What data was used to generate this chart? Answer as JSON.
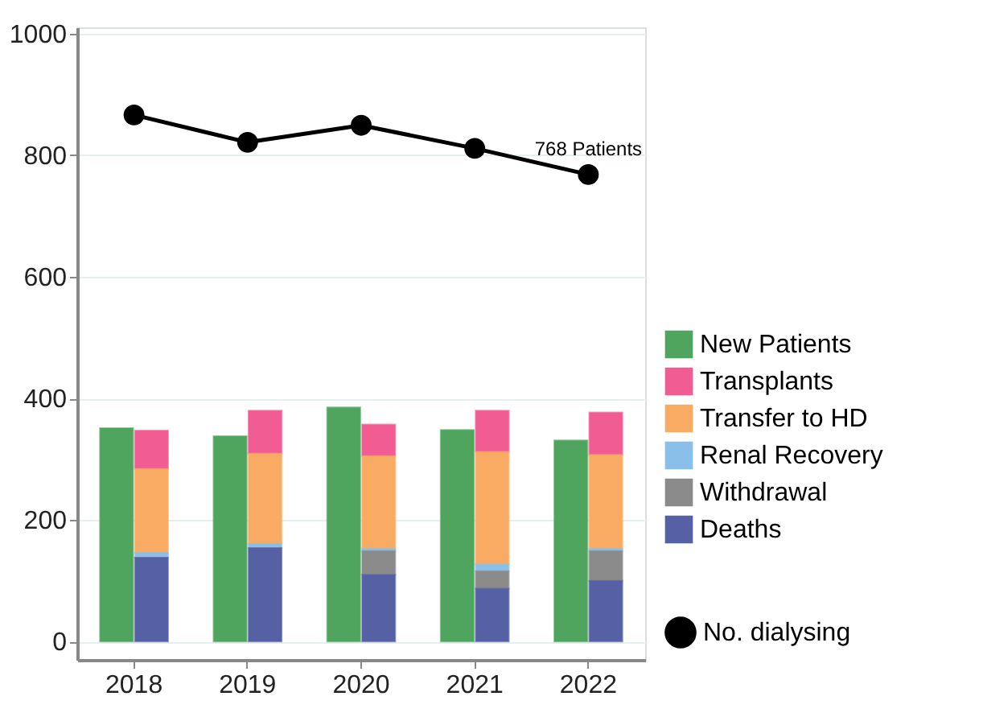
{
  "chart_data": {
    "type": "bar",
    "categories": [
      "2018",
      "2019",
      "2020",
      "2021",
      "2022"
    ],
    "series": [
      {
        "name": "New Patients",
        "color": "#4fa55e",
        "values": [
          351,
          338,
          385,
          348,
          331
        ]
      },
      {
        "name": "Transplants",
        "color": "#f15c93",
        "base": [
          284,
          309,
          305,
          312,
          307
        ],
        "values": [
          63,
          71,
          52,
          68,
          70
        ]
      },
      {
        "name": "Transfer to HD",
        "color": "#f9ab64",
        "base": [
          146,
          161,
          153,
          127,
          153
        ],
        "values": [
          138,
          148,
          152,
          185,
          154
        ]
      },
      {
        "name": "Renal Recovery",
        "color": "#89bfe8",
        "base": [
          138,
          154,
          149,
          116,
          149
        ],
        "values": [
          8,
          7,
          4,
          11,
          4
        ]
      },
      {
        "name": "Withdrawal",
        "color": "#8b8b8b",
        "base": [
          138,
          154,
          110,
          87,
          100
        ],
        "values": [
          0,
          0,
          39,
          29,
          49
        ]
      },
      {
        "name": "Deaths",
        "color": "#5560a5",
        "base": [
          0,
          0,
          0,
          0,
          0
        ],
        "values": [
          138,
          154,
          110,
          87,
          100
        ]
      },
      {
        "name": "No. dialysing",
        "color": "#000000",
        "type": "line",
        "marker": "circle",
        "values": [
          866,
          821,
          849,
          811,
          768
        ]
      }
    ],
    "ylim": [
      -30,
      1010
    ],
    "yticks": [
      0,
      200,
      400,
      600,
      800,
      {
        "value": 1000,
        "label": "1000"
      }
    ],
    "grid": "y",
    "legend": "right",
    "annotations": [
      {
        "text": "768 Patients",
        "x": "2022",
        "y": 768
      }
    ]
  }
}
